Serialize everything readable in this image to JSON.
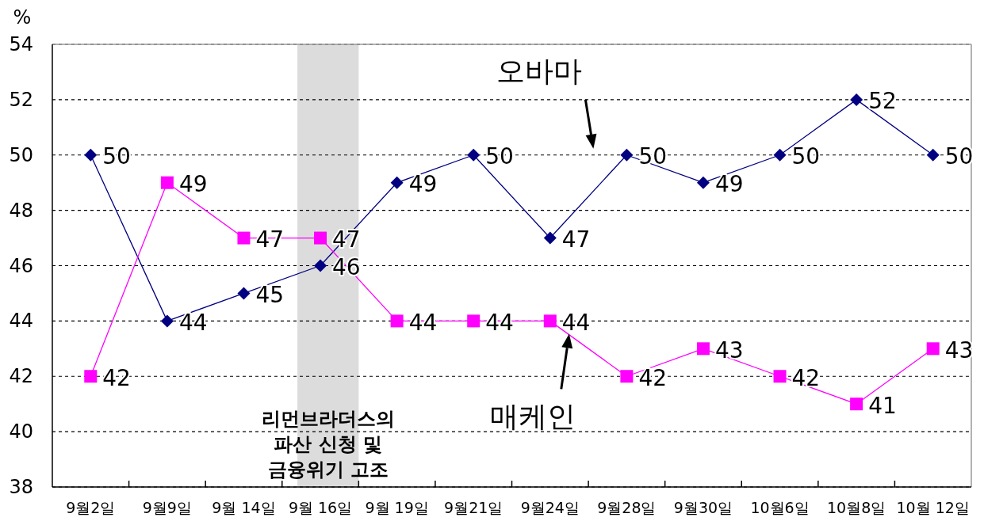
{
  "chart_data": {
    "type": "line",
    "ylabel": "%",
    "categories": [
      "9월2일",
      "9월9일",
      "9월 14일",
      "9월 16일",
      "9월 19일",
      "9월21일",
      "9월24일",
      "9월28일",
      "9월30일",
      "10월6일",
      "10월8일",
      "10월 12일"
    ],
    "series": [
      {
        "color": "#000080",
        "marker": "diamond",
        "line_style": "solid",
        "values": [
          50,
          44,
          45,
          46,
          49,
          50,
          47,
          50,
          49,
          50,
          52,
          50
        ]
      },
      {
        "color": "#ff00ff",
        "marker": "square",
        "line_style": "solid",
        "values": [
          42,
          49,
          47,
          47,
          44,
          44,
          44,
          42,
          43,
          42,
          41,
          43
        ]
      }
    ],
    "ylim": [
      38,
      54
    ],
    "yticks": [
      38,
      40,
      42,
      44,
      46,
      48,
      50,
      52,
      54
    ],
    "grid": "y",
    "data_labels": true,
    "bands": [
      {
        "axis": "x",
        "from": "9월 16일",
        "to": "9월 16일",
        "label": "리먼브라더스의\n파산 신청 및\n금융위기 고조",
        "color": "#dcdcdc"
      }
    ],
    "annotations": [
      {
        "text": "오바마",
        "x": "9월28일",
        "y": 50
      },
      {
        "text": "매케인",
        "x": "9월24일",
        "y": 44
      }
    ]
  }
}
